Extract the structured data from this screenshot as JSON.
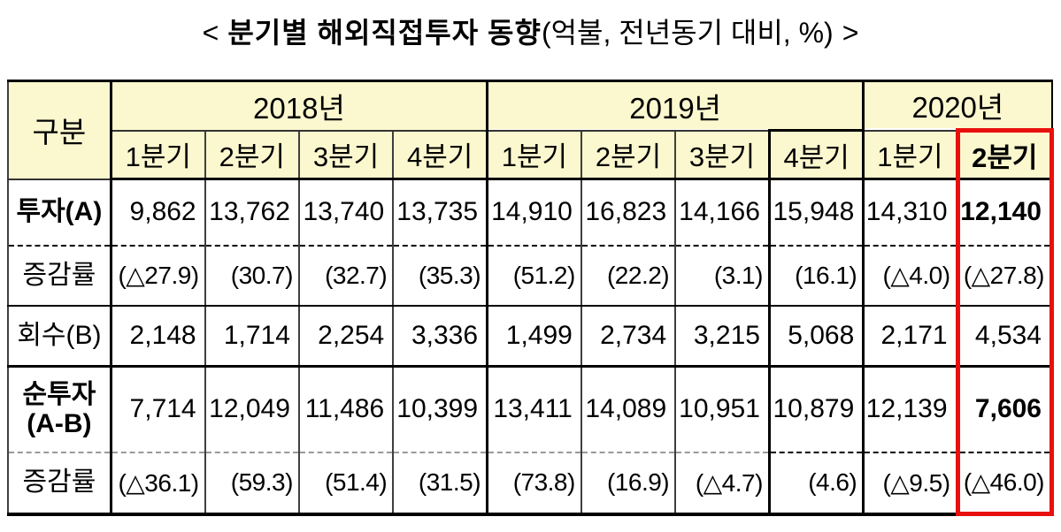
{
  "title": {
    "prefix": "<",
    "main": "분기별 해외직접투자 동향",
    "unit": "(억불, 전년동기 대비, %)",
    "suffix": ">"
  },
  "table": {
    "corner": "구분",
    "year_groups": [
      {
        "label": "2018년",
        "span": 4
      },
      {
        "label": "2019년",
        "span": 4
      },
      {
        "label": "2020년",
        "span": 2
      }
    ],
    "quarters": [
      "1분기",
      "2분기",
      "3분기",
      "4분기",
      "1분기",
      "2분기",
      "3분기",
      "4분기",
      "1분기",
      "2분기"
    ],
    "rows": [
      {
        "label": "투자(A)",
        "values": [
          "9,862",
          "13,762",
          "13,740",
          "13,735",
          "14,910",
          "16,823",
          "14,166",
          "15,948",
          "14,310",
          "12,140"
        ]
      },
      {
        "label": "증감률",
        "values": [
          "(△27.9)",
          "(30.7)",
          "(32.7)",
          "(35.3)",
          "(51.2)",
          "(22.2)",
          "(3.1)",
          "(16.1)",
          "(△4.0)",
          "(△27.8)"
        ]
      },
      {
        "label": "회수(B)",
        "values": [
          "2,148",
          "1,714",
          "2,254",
          "3,336",
          "1,499",
          "2,734",
          "3,215",
          "5,068",
          "2,171",
          "4,534"
        ]
      },
      {
        "label": "순투자",
        "label_sub": "(A-B)",
        "values": [
          "7,714",
          "12,049",
          "11,486",
          "10,399",
          "13,411",
          "14,089",
          "10,951",
          "10,879",
          "12,139",
          "7,606"
        ]
      },
      {
        "label": "증감률",
        "values": [
          "(△36.1)",
          "(59.3)",
          "(51.4)",
          "(31.5)",
          "(73.8)",
          "(16.9)",
          "(△4.7)",
          "(4.6)",
          "(△9.5)",
          "(△46.0)"
        ]
      }
    ],
    "highlight": {
      "black_box_column": "2019년 4분기",
      "red_box_column": "2020년 2분기"
    },
    "colors": {
      "header_bg": "#FBF7CE",
      "highlight_red": "#E8100C"
    }
  }
}
